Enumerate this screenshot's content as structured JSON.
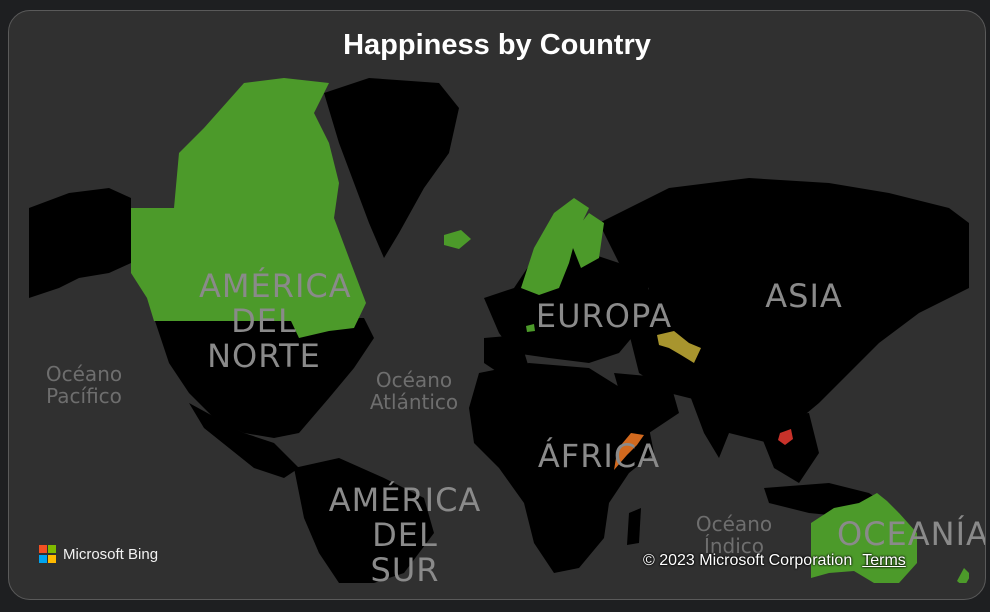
{
  "title": "Happiness by Country",
  "map_labels": {
    "north_america": "AMÉRICA\nDEL\nNORTE",
    "south_america": "AMÉRICA\nDEL\nSUR",
    "europe": "EUROPA",
    "asia": "ASIA",
    "africa": "ÁFRICA",
    "oceania": "OCEANÍA",
    "pacific": "Océano\nPacífico",
    "atlantic": "Océano\nAtlántico",
    "indian": "Océano\nÍndico"
  },
  "highlighted_regions": [
    {
      "region": "canada",
      "color": "#4c9a2a"
    },
    {
      "region": "iceland",
      "color": "#4c9a2a"
    },
    {
      "region": "scandinavia",
      "color": "#4c9a2a"
    },
    {
      "region": "netherlands",
      "color": "#4c9a2a"
    },
    {
      "region": "uzbekistan",
      "color": "#a8952e"
    },
    {
      "region": "somalia",
      "color": "#d2691e"
    },
    {
      "region": "cambodia",
      "color": "#c8322a"
    },
    {
      "region": "australia",
      "color": "#4c9a2a"
    },
    {
      "region": "new-zealand",
      "color": "#4c9a2a"
    }
  ],
  "attribution": {
    "brand": "Microsoft Bing",
    "copyright": "© 2023 Microsoft Corporation",
    "terms": "Terms"
  }
}
